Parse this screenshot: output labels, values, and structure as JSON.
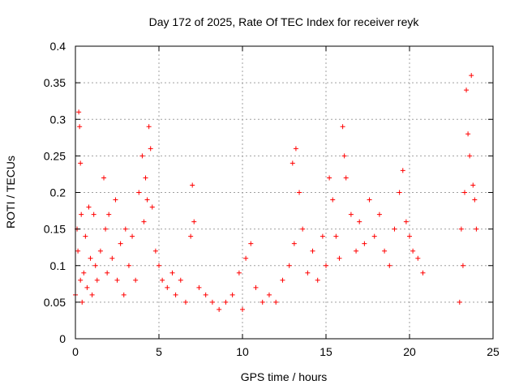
{
  "chart_data": {
    "type": "scatter",
    "title": "Day 172 of 2025, Rate Of TEC Index for receiver reyk",
    "xlabel": "GPS time / hours",
    "ylabel": "ROTI / TECUs",
    "xlim": [
      0,
      25
    ],
    "ylim": [
      0,
      0.4
    ],
    "x_ticks": [
      {
        "value": 0,
        "label": "0"
      },
      {
        "value": 5,
        "label": "5"
      },
      {
        "value": 10,
        "label": "10"
      },
      {
        "value": 15,
        "label": "15"
      },
      {
        "value": 20,
        "label": "20"
      },
      {
        "value": 25,
        "label": "25"
      }
    ],
    "y_ticks": [
      {
        "value": 0,
        "label": "0"
      },
      {
        "value": 0.05,
        "label": "0.05"
      },
      {
        "value": 0.1,
        "label": "0.1"
      },
      {
        "value": 0.15,
        "label": "0.15"
      },
      {
        "value": 0.2,
        "label": "0.2"
      },
      {
        "value": 0.25,
        "label": "0.25"
      },
      {
        "value": 0.3,
        "label": "0.3"
      },
      {
        "value": 0.35,
        "label": "0.35"
      },
      {
        "value": 0.4,
        "label": "0.4"
      }
    ],
    "grid": true,
    "marker": "+",
    "series": [
      {
        "color": "#ff0000",
        "x": [
          0.0,
          0.1,
          0.15,
          0.2,
          0.25,
          0.3,
          0.3,
          0.35,
          0.4,
          0.5,
          0.6,
          0.7,
          0.8,
          0.9,
          1.0,
          1.1,
          1.2,
          1.3,
          1.5,
          1.7,
          1.8,
          1.9,
          2.0,
          2.2,
          2.4,
          2.5,
          2.7,
          2.9,
          3.0,
          3.2,
          3.4,
          3.6,
          3.8,
          4.0,
          4.1,
          4.2,
          4.3,
          4.4,
          4.5,
          4.6,
          4.8,
          5.0,
          5.2,
          5.5,
          5.8,
          6.0,
          6.3,
          6.6,
          6.9,
          7.0,
          7.1,
          7.4,
          7.8,
          8.2,
          8.6,
          9.0,
          9.4,
          9.8,
          10.0,
          10.2,
          10.5,
          10.8,
          11.2,
          11.6,
          12.0,
          12.4,
          12.8,
          13.0,
          13.1,
          13.2,
          13.4,
          13.6,
          13.9,
          14.2,
          14.5,
          14.8,
          15.0,
          15.2,
          15.4,
          15.6,
          15.8,
          16.0,
          16.1,
          16.2,
          16.5,
          16.8,
          17.0,
          17.3,
          17.6,
          17.9,
          18.2,
          18.5,
          18.8,
          19.1,
          19.4,
          19.6,
          19.8,
          20.0,
          20.2,
          20.5,
          20.8,
          23.0,
          23.1,
          23.2,
          23.3,
          23.4,
          23.5,
          23.6,
          23.7,
          23.8,
          23.9,
          24.0
        ],
        "y": [
          0.06,
          0.15,
          0.12,
          0.31,
          0.29,
          0.24,
          0.08,
          0.17,
          0.05,
          0.09,
          0.14,
          0.07,
          0.18,
          0.11,
          0.06,
          0.17,
          0.1,
          0.08,
          0.12,
          0.22,
          0.15,
          0.09,
          0.17,
          0.11,
          0.19,
          0.08,
          0.13,
          0.06,
          0.15,
          0.1,
          0.14,
          0.08,
          0.2,
          0.25,
          0.16,
          0.22,
          0.19,
          0.29,
          0.26,
          0.18,
          0.12,
          0.1,
          0.08,
          0.07,
          0.09,
          0.06,
          0.08,
          0.05,
          0.14,
          0.21,
          0.16,
          0.07,
          0.06,
          0.05,
          0.04,
          0.05,
          0.06,
          0.09,
          0.04,
          0.11,
          0.13,
          0.07,
          0.05,
          0.06,
          0.05,
          0.08,
          0.1,
          0.24,
          0.13,
          0.26,
          0.2,
          0.15,
          0.09,
          0.12,
          0.08,
          0.14,
          0.1,
          0.22,
          0.19,
          0.14,
          0.11,
          0.29,
          0.25,
          0.22,
          0.17,
          0.12,
          0.16,
          0.13,
          0.19,
          0.14,
          0.17,
          0.12,
          0.1,
          0.15,
          0.2,
          0.23,
          0.16,
          0.14,
          0.12,
          0.11,
          0.09,
          0.05,
          0.15,
          0.1,
          0.2,
          0.34,
          0.28,
          0.25,
          0.36,
          0.21,
          0.19,
          0.15
        ]
      }
    ]
  }
}
